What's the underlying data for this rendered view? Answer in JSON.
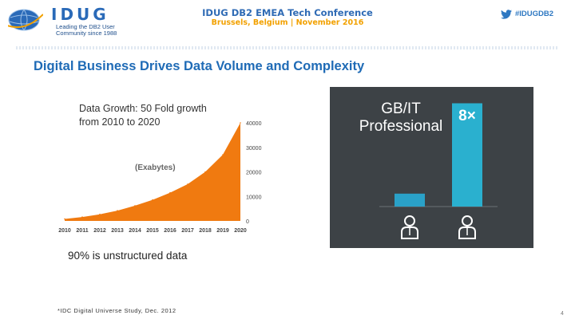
{
  "header": {
    "brand": "IDUG",
    "tagline": "Leading the DB2 User Community since 1988",
    "conference_title": "IDUG DB2 EMEA Tech Conference",
    "conference_subtitle": "Brussels, Belgium  |  November 2016",
    "hashtag": "#IDUGDB2",
    "colors": {
      "brand_blue": "#2a6ab8",
      "accent_orange": "#f2a100",
      "twitter_blue": "#2e78c2"
    }
  },
  "slide": {
    "title": "Digital Business Drives Data Volume and Complexity",
    "note": "90% is unstructured data",
    "footnote": "*IDC Digital Universe Study, Dec. 2012",
    "page_number": "4"
  },
  "chart_data": [
    {
      "type": "area",
      "title": "Data Growth: 50 Fold growth from 2010 to 2020",
      "title_lines": [
        "Data Growth: 50 Fold growth",
        "from 2010 to 2020"
      ],
      "annotation": "(Exabytes)",
      "x": [
        "2010",
        "2011",
        "2012",
        "2013",
        "2014",
        "2015",
        "2016",
        "2017",
        "2018",
        "2019",
        "2020"
      ],
      "y": [
        800,
        1600,
        2700,
        4200,
        6200,
        8600,
        11500,
        15000,
        20000,
        27000,
        40000
      ],
      "ylim": [
        0,
        40000
      ],
      "yticks": [
        0,
        10000,
        20000,
        30000,
        40000
      ],
      "y_axis_side": "right",
      "color": "#f07a10",
      "grid": false,
      "legend": "none"
    },
    {
      "type": "bar",
      "title_lines": [
        "GB/IT",
        "Professional"
      ],
      "annotation": "8×",
      "categories": [
        "person-icon",
        "person-icon"
      ],
      "values": [
        1,
        8
      ],
      "ylim": [
        0,
        8.4
      ],
      "colors": {
        "background": "#3d4246",
        "bar_left": "#2aa1c8",
        "bar_right": "#2ab0cf",
        "text": "#ffffff"
      },
      "grid": false,
      "legend": "none"
    }
  ]
}
